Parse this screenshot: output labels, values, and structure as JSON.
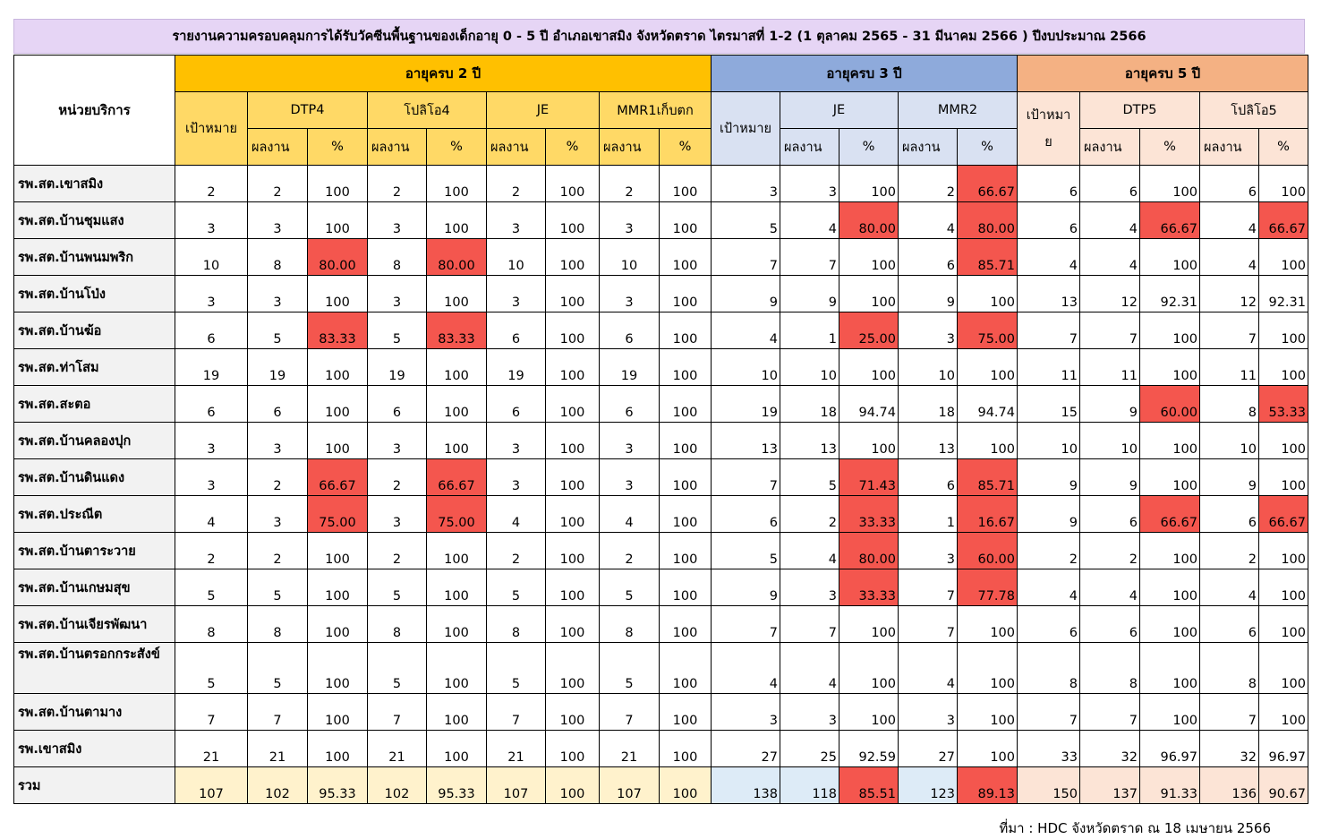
{
  "title": "รายงานความครอบคลุมการได้รับวัคซีนพื้นฐานของเด็กอายุ 0 - 5 ปี อำเภอเขาสมิง จังหวัดตราด ไตรมาสที่ 1-2 (1 ตุลาคม 2565 - 31 มีนาคม 2566 ) ปีงบประมาณ 2566",
  "headers": {
    "unit": "หน่วยบริการ",
    "age2": "อายุครบ 2 ปี",
    "age3": "อายุครบ 3 ปี",
    "age5": "อายุครบ 5 ปี",
    "target": "เป้าหมาย",
    "target5_line1": "เป้าหมา",
    "target5_line2": "ย",
    "dtp4": "DTP4",
    "polio4": "โปลิโอ4",
    "je": "JE",
    "mmr1": "MMR1เก็บตก",
    "mmr2": "MMR2",
    "dtp5": "DTP5",
    "polio5": "โปลิโอ5",
    "result": "ผลงาน",
    "percent": "%"
  },
  "highlight_color": "#f4564e",
  "rows": [
    {
      "name": "รพ.สต.เขาสมิง",
      "v": [
        "2",
        "2",
        "100",
        "2",
        "100",
        "2",
        "100",
        "2",
        "100",
        "3",
        "3",
        "100",
        "2",
        "66.67",
        "6",
        "6",
        "100",
        "6",
        "100"
      ]
    },
    {
      "name": "รพ.สต.บ้านชุมแสง",
      "v": [
        "3",
        "3",
        "100",
        "3",
        "100",
        "3",
        "100",
        "3",
        "100",
        "5",
        "4",
        "80.00",
        "4",
        "80.00",
        "6",
        "4",
        "66.67",
        "4",
        "66.67"
      ]
    },
    {
      "name": "รพ.สต.บ้านพนมพริก",
      "v": [
        "10",
        "8",
        "80.00",
        "8",
        "80.00",
        "10",
        "100",
        "10",
        "100",
        "7",
        "7",
        "100",
        "6",
        "85.71",
        "4",
        "4",
        "100",
        "4",
        "100"
      ]
    },
    {
      "name": "รพ.สต.บ้านโป่ง",
      "v": [
        "3",
        "3",
        "100",
        "3",
        "100",
        "3",
        "100",
        "3",
        "100",
        "9",
        "9",
        "100",
        "9",
        "100",
        "13",
        "12",
        "92.31",
        "12",
        "92.31"
      ]
    },
    {
      "name": "รพ.สต.บ้านฆ้อ",
      "v": [
        "6",
        "5",
        "83.33",
        "5",
        "83.33",
        "6",
        "100",
        "6",
        "100",
        "4",
        "1",
        "25.00",
        "3",
        "75.00",
        "7",
        "7",
        "100",
        "7",
        "100"
      ]
    },
    {
      "name": "รพ.สต.ท่าโสม",
      "v": [
        "19",
        "19",
        "100",
        "19",
        "100",
        "19",
        "100",
        "19",
        "100",
        "10",
        "10",
        "100",
        "10",
        "100",
        "11",
        "11",
        "100",
        "11",
        "100"
      ]
    },
    {
      "name": "รพ.สต.สะตอ",
      "v": [
        "6",
        "6",
        "100",
        "6",
        "100",
        "6",
        "100",
        "6",
        "100",
        "19",
        "18",
        "94.74",
        "18",
        "94.74",
        "15",
        "9",
        "60.00",
        "8",
        "53.33"
      ]
    },
    {
      "name": "รพ.สต.บ้านคลองปุก",
      "v": [
        "3",
        "3",
        "100",
        "3",
        "100",
        "3",
        "100",
        "3",
        "100",
        "13",
        "13",
        "100",
        "13",
        "100",
        "10",
        "10",
        "100",
        "10",
        "100"
      ]
    },
    {
      "name": "รพ.สต.บ้านดินแดง",
      "v": [
        "3",
        "2",
        "66.67",
        "2",
        "66.67",
        "3",
        "100",
        "3",
        "100",
        "7",
        "5",
        "71.43",
        "6",
        "85.71",
        "9",
        "9",
        "100",
        "9",
        "100"
      ]
    },
    {
      "name": "รพ.สต.ประณีต",
      "v": [
        "4",
        "3",
        "75.00",
        "3",
        "75.00",
        "4",
        "100",
        "4",
        "100",
        "6",
        "2",
        "33.33",
        "1",
        "16.67",
        "9",
        "6",
        "66.67",
        "6",
        "66.67"
      ]
    },
    {
      "name": "รพ.สต.บ้านตาระวาย",
      "v": [
        "2",
        "2",
        "100",
        "2",
        "100",
        "2",
        "100",
        "2",
        "100",
        "5",
        "4",
        "80.00",
        "3",
        "60.00",
        "2",
        "2",
        "100",
        "2",
        "100"
      ]
    },
    {
      "name": "รพ.สต.บ้านเกษมสุข",
      "v": [
        "5",
        "5",
        "100",
        "5",
        "100",
        "5",
        "100",
        "5",
        "100",
        "9",
        "3",
        "33.33",
        "7",
        "77.78",
        "4",
        "4",
        "100",
        "4",
        "100"
      ]
    },
    {
      "name": "รพ.สต.บ้านเจียรพัฒนา",
      "v": [
        "8",
        "8",
        "100",
        "8",
        "100",
        "8",
        "100",
        "8",
        "100",
        "7",
        "7",
        "100",
        "7",
        "100",
        "6",
        "6",
        "100",
        "6",
        "100"
      ]
    },
    {
      "name": "รพ.สต.บ้านตรอกกระสังข์",
      "v": [
        "5",
        "5",
        "100",
        "5",
        "100",
        "5",
        "100",
        "5",
        "100",
        "4",
        "4",
        "100",
        "4",
        "100",
        "8",
        "8",
        "100",
        "8",
        "100"
      ]
    },
    {
      "name": "รพ.สต.บ้านตามาง",
      "v": [
        "7",
        "7",
        "100",
        "7",
        "100",
        "7",
        "100",
        "7",
        "100",
        "3",
        "3",
        "100",
        "3",
        "100",
        "7",
        "7",
        "100",
        "7",
        "100"
      ]
    },
    {
      "name": "รพ.เขาสมิง",
      "v": [
        "21",
        "21",
        "100",
        "21",
        "100",
        "21",
        "100",
        "21",
        "100",
        "27",
        "25",
        "92.59",
        "27",
        "100",
        "33",
        "32",
        "96.97",
        "32",
        "96.97"
      ]
    }
  ],
  "total": {
    "name": "รวม",
    "v": [
      "107",
      "102",
      "95.33",
      "102",
      "95.33",
      "107",
      "100",
      "107",
      "100",
      "138",
      "118",
      "85.51",
      "123",
      "89.13",
      "150",
      "137",
      "91.33",
      "136",
      "90.67"
    ]
  },
  "source": "ที่มา : HDC จังหวัดตราด ณ 18 เมษายน 2566"
}
